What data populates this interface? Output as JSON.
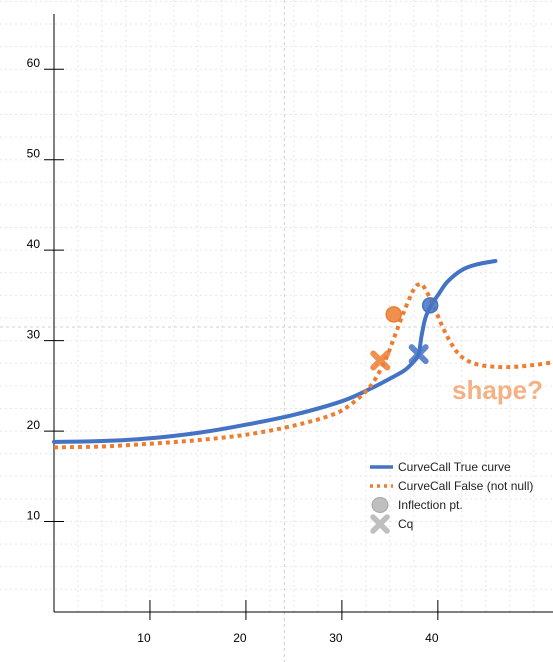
{
  "chart_data": {
    "type": "line",
    "title": "",
    "xlabel": "",
    "ylabel": "",
    "xlim": [
      0,
      52
    ],
    "ylim": [
      0,
      65
    ],
    "x_ticks": [
      10,
      20,
      30,
      40
    ],
    "y_ticks": [
      10,
      20,
      30,
      40,
      50,
      60
    ],
    "grid": true,
    "legend_position": "bottom-right",
    "legend": {
      "true_curve": "CurveCall True curve",
      "false_curve": "CurveCall False (not null)",
      "inflection": "Inflection pt.",
      "cq": "Cq"
    },
    "annotation": "shape?",
    "colors": {
      "true_curve": "#4472C4",
      "false_curve": "#ED7D31",
      "annotation": "#F4B183",
      "legend_marker": "#BFBFBF"
    },
    "series": [
      {
        "name": "CurveCall True curve",
        "style": "solid",
        "x": [
          0,
          5,
          10,
          15,
          20,
          25,
          30,
          33,
          35,
          36.5,
          37.5,
          38,
          38.3,
          38.7,
          39.3,
          40,
          41,
          42.5,
          44,
          46
        ],
        "y": [
          18.8,
          18.9,
          19.2,
          19.8,
          20.7,
          21.8,
          23.3,
          24.7,
          25.8,
          26.7,
          27.7,
          28.5,
          30.5,
          32.5,
          33.9,
          35.0,
          36.5,
          37.8,
          38.4,
          38.8
        ]
      },
      {
        "name": "CurveCall False (not null)",
        "style": "dotted",
        "x": [
          0,
          5,
          10,
          15,
          20,
          25,
          29,
          31,
          33,
          34.5,
          35.5,
          36.5,
          37.5,
          38,
          38.5,
          39.5,
          40.5,
          41.5,
          42.5,
          44,
          46,
          48,
          50,
          52
        ],
        "y": [
          18.2,
          18.3,
          18.6,
          19.0,
          19.6,
          20.6,
          21.8,
          23.0,
          25.0,
          27.8,
          30.5,
          33.3,
          35.7,
          36.2,
          36.0,
          34.0,
          31.5,
          29.5,
          28.2,
          27.4,
          27.1,
          27.1,
          27.3,
          27.6
        ]
      }
    ],
    "markers": [
      {
        "series": "CurveCall True curve",
        "kind": "inflection",
        "x": 39.2,
        "y": 33.9
      },
      {
        "series": "CurveCall True curve",
        "kind": "cq",
        "x": 38.0,
        "y": 28.5
      },
      {
        "series": "CurveCall False (not null)",
        "kind": "inflection",
        "x": 35.4,
        "y": 32.9
      },
      {
        "series": "CurveCall False (not null)",
        "kind": "cq",
        "x": 34.0,
        "y": 27.8
      }
    ]
  }
}
